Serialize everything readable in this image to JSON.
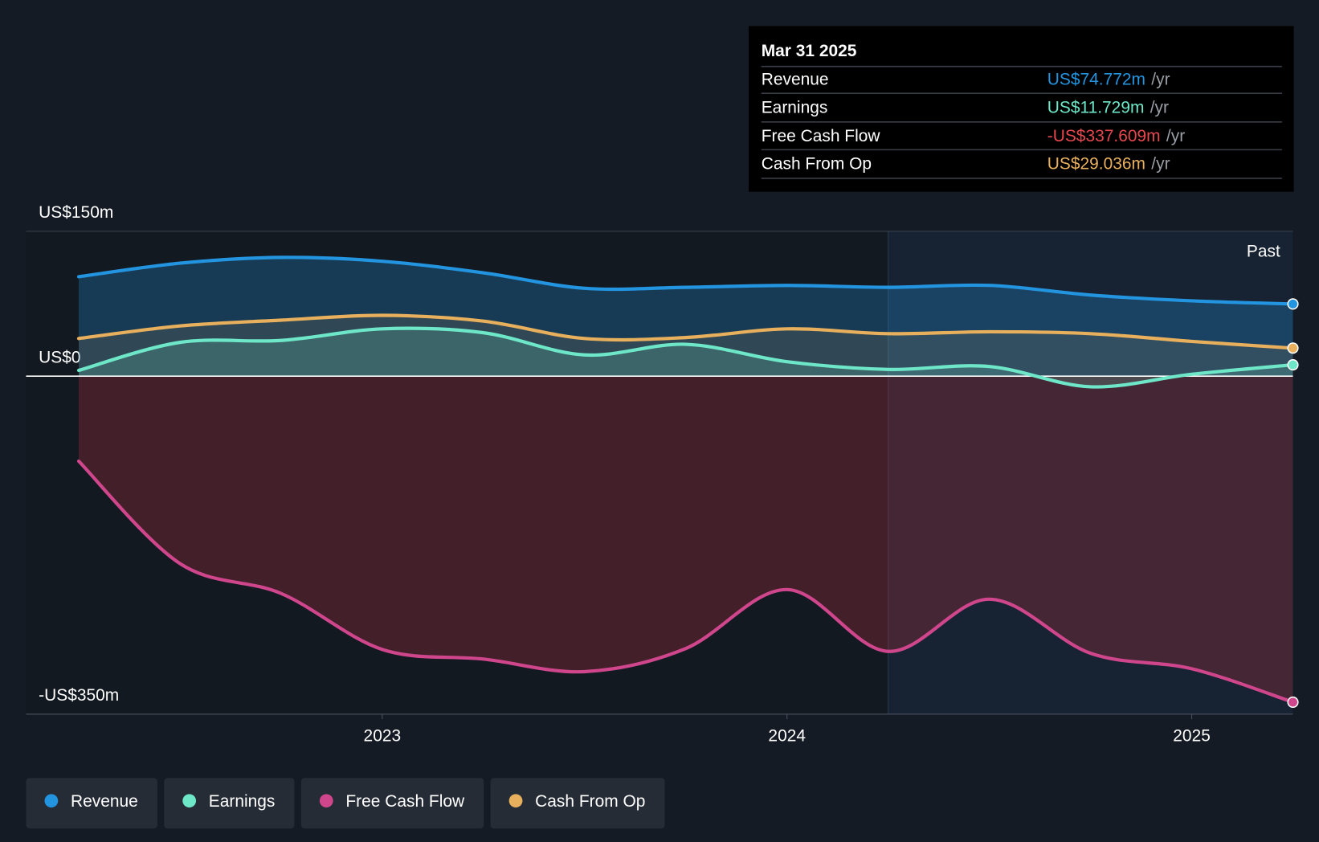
{
  "chart_data": {
    "type": "line",
    "x": [
      2022.25,
      2022.5,
      2022.75,
      2023.0,
      2023.25,
      2023.5,
      2023.75,
      2024.0,
      2024.25,
      2024.5,
      2024.75,
      2025.0,
      2025.25
    ],
    "xlim": [
      2022.12,
      2025.25
    ],
    "xticks": [
      2023,
      2024,
      2025
    ],
    "ylim": [
      -350,
      150
    ],
    "yticks": [
      {
        "value": 150,
        "label": "US$150m"
      },
      {
        "value": 0,
        "label": "US$0"
      },
      {
        "value": -350,
        "label": "-US$350m"
      }
    ],
    "series": [
      {
        "name": "Revenue",
        "color": "#2394df",
        "area_color": "#2394df",
        "values": [
          103,
          117,
          123,
          119,
          107,
          91,
          92,
          94,
          92,
          94,
          84,
          78,
          74.772
        ]
      },
      {
        "name": "Earnings",
        "color": "#6ee7c8",
        "area_color": "#6ee7c8",
        "values": [
          6,
          35,
          37,
          49,
          45,
          22,
          33,
          15,
          7,
          10,
          -11,
          2,
          11.729
        ]
      },
      {
        "name": "Free Cash Flow",
        "color": "#d0468c",
        "area_color": "#b0303f",
        "values": [
          -88,
          -194,
          -225,
          -283,
          -293,
          -306,
          -282,
          -221,
          -285,
          -231,
          -287,
          -303,
          -337.609
        ]
      },
      {
        "name": "Cash From Op",
        "color": "#e8b05c",
        "area_color": "#e8b05c",
        "values": [
          39,
          52,
          58,
          63,
          57,
          39,
          40,
          49,
          44,
          46,
          44,
          36,
          29.036
        ]
      }
    ],
    "past_start": 2024.25,
    "past_label": "Past",
    "legend": "bottom",
    "tooltip": {
      "title": "Mar 31 2025",
      "rows": [
        {
          "label": "Revenue",
          "value": "US$74.772m",
          "unit": "/yr",
          "color": "#2394df"
        },
        {
          "label": "Earnings",
          "value": "US$11.729m",
          "unit": "/yr",
          "color": "#6ee7c8"
        },
        {
          "label": "Free Cash Flow",
          "value": "-US$337.609m",
          "unit": "/yr",
          "color": "#e5484d"
        },
        {
          "label": "Cash From Op",
          "value": "US$29.036m",
          "unit": "/yr",
          "color": "#e8b05c"
        }
      ]
    }
  }
}
